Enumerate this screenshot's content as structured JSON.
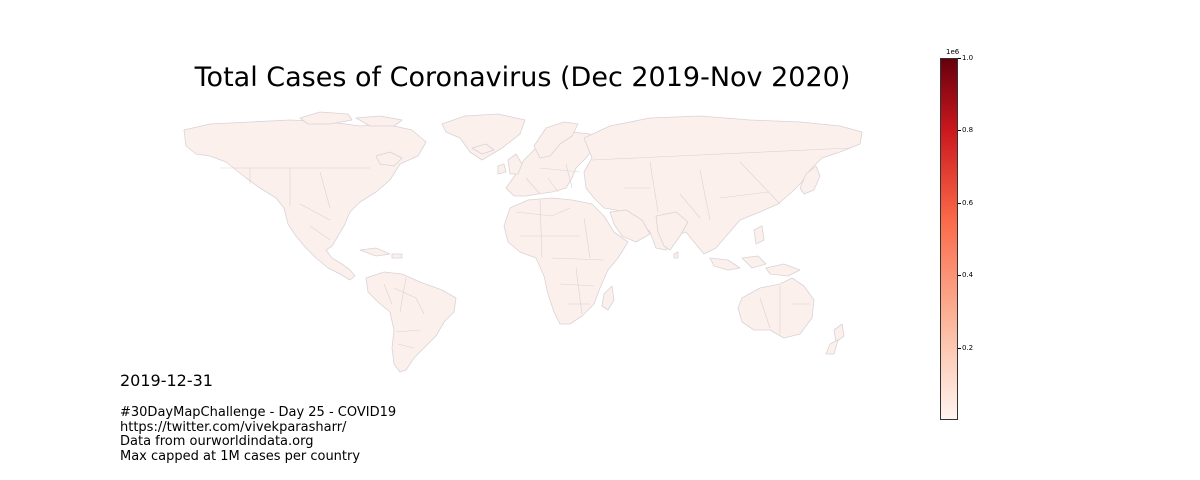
{
  "title": "Total Cases of Coronavirus (Dec 2019-Nov 2020)",
  "date": "2019-12-31",
  "notes": [
    "#30DayMapChallenge - Day 25 - COVID19",
    "https://twitter.com/vivekparasharr/",
    "Data from ourworldindata.org",
    "Max capped at 1M cases per country"
  ],
  "colorbar": {
    "exponent_label": "1e6",
    "ticks": [
      {
        "value": 0.2,
        "label": "0.2"
      },
      {
        "value": 0.4,
        "label": "0.4"
      },
      {
        "value": 0.6,
        "label": "0.6"
      },
      {
        "value": 0.8,
        "label": "0.8"
      },
      {
        "value": 1.0,
        "label": "1.0"
      }
    ],
    "min": 0,
    "max": 1.0,
    "color_low": "#fff5f0",
    "color_high": "#67000d",
    "colormap": "Reds"
  },
  "map": {
    "land_fill": "#fcf0ec",
    "border_color": "#d9d2d6",
    "projection": "equirectangular"
  }
}
